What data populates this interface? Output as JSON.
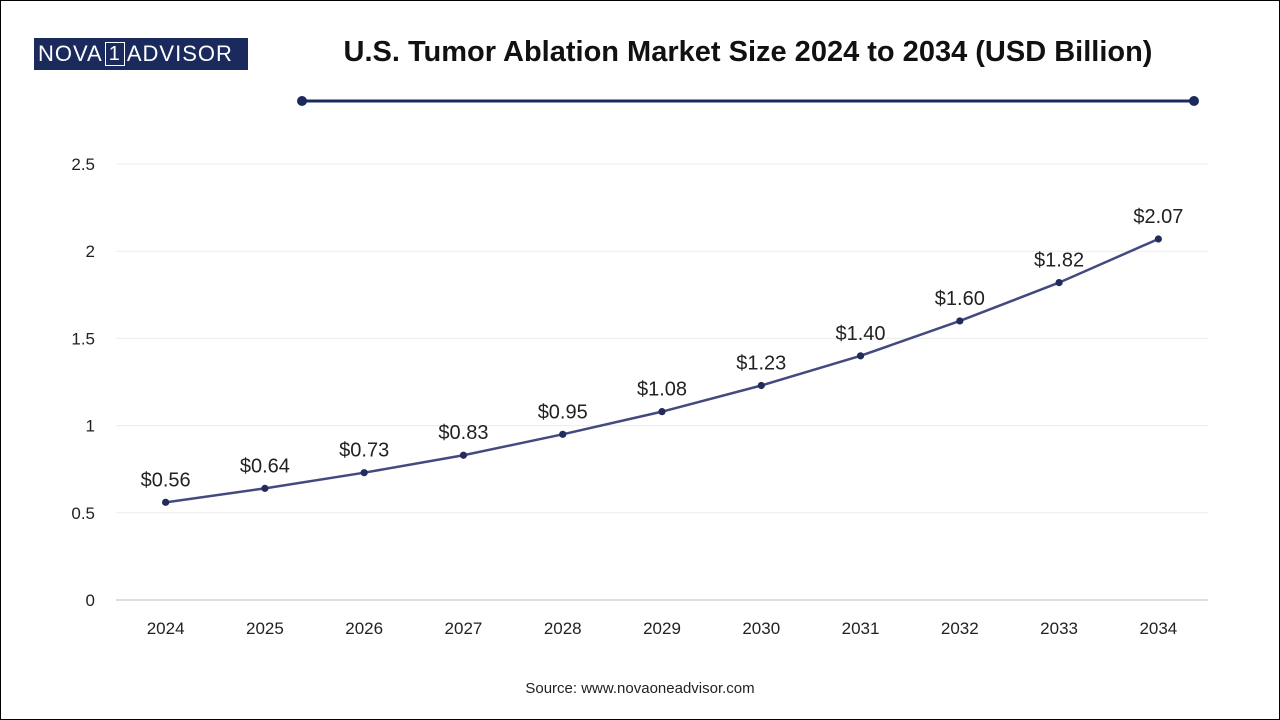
{
  "header": {
    "logo_left": "NOVA",
    "logo_mid": "1",
    "logo_right": "ADVISOR",
    "title": "U.S. Tumor Ablation Market Size 2024 to 2034 (USD Billion)"
  },
  "footer": {
    "source": "Source: www.novaoneadvisor.com"
  },
  "colors": {
    "line": "#434a7f",
    "marker": "#232a5c",
    "rule": "#1b2a5c",
    "grid": "#ececec"
  },
  "chart_data": {
    "type": "line",
    "title": "U.S. Tumor Ablation Market Size 2024 to 2034 (USD Billion)",
    "categories": [
      "2024",
      "2025",
      "2026",
      "2027",
      "2028",
      "2029",
      "2030",
      "2031",
      "2032",
      "2033",
      "2034"
    ],
    "values": [
      0.56,
      0.64,
      0.73,
      0.83,
      0.95,
      1.08,
      1.23,
      1.4,
      1.6,
      1.82,
      2.07
    ],
    "data_labels": [
      "$0.56",
      "$0.64",
      "$0.73",
      "$0.83",
      "$0.95",
      "$1.08",
      "$1.23",
      "$1.40",
      "$1.60",
      "$1.82",
      "$2.07"
    ],
    "yticks": [
      "0",
      "0.5",
      "1",
      "1.5",
      "2",
      "2.5"
    ],
    "ylim": [
      0,
      2.5
    ],
    "grid": true,
    "legend": "none"
  }
}
